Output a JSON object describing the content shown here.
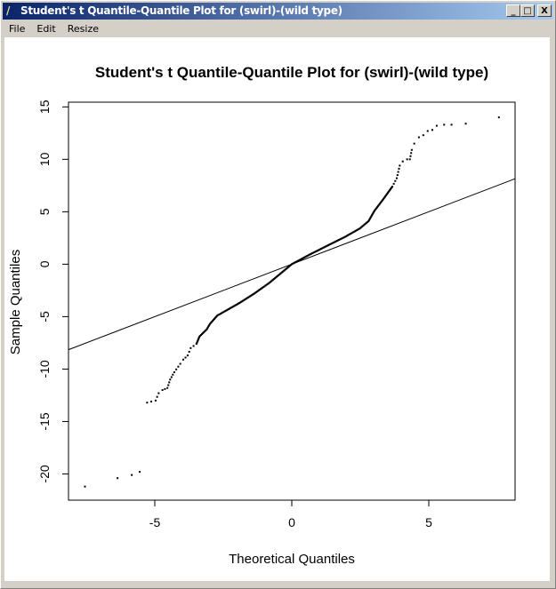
{
  "window": {
    "title": "Student's t Quantile-Quantile Plot for (swirl)-(wild type)",
    "icon": "feather-icon",
    "controls": {
      "minimize": "_",
      "maximize": "□",
      "close": "X"
    }
  },
  "menu": {
    "items": [
      "File",
      "Edit",
      "Resize"
    ]
  },
  "colors": {
    "titlebar_start": "#0a246a",
    "titlebar_end": "#a6caf0",
    "points": "#000000",
    "line": "#000000"
  },
  "chart_data": {
    "type": "scatter",
    "title": "Student's t Quantile-Quantile Plot for (swirl)-(wild type)",
    "xlabel": "Theoretical Quantiles",
    "ylabel": "Sample Quantiles",
    "xlim": [
      -8.15,
      8.15
    ],
    "ylim": [
      -22.5,
      15.45
    ],
    "xticks": [
      -5,
      0,
      5
    ],
    "yticks": [
      -20,
      -15,
      -10,
      -5,
      0,
      5,
      10,
      15
    ],
    "grid": false,
    "reference_line": {
      "slope": 1,
      "intercept": 0
    },
    "points": [
      [
        -7.55,
        -21.2
      ],
      [
        -6.36,
        -20.4
      ],
      [
        -5.84,
        -20.1
      ],
      [
        -5.55,
        -19.8
      ],
      [
        -5.28,
        -13.2
      ],
      [
        -5.13,
        -13.1
      ],
      [
        -4.97,
        -13.0
      ],
      [
        -4.86,
        -12.3
      ],
      [
        -4.72,
        -12.0
      ],
      [
        -4.54,
        -11.8
      ],
      [
        -4.44,
        -11.0
      ],
      [
        -4.29,
        -10.3
      ],
      [
        -4.07,
        -9.5
      ],
      [
        -3.96,
        -9.1
      ],
      [
        -3.8,
        -8.7
      ],
      [
        -3.69,
        -8.0
      ],
      [
        -3.48,
        -7.6
      ],
      [
        -3.37,
        -6.9
      ],
      [
        -3.1,
        -6.2
      ],
      [
        -2.99,
        -5.7
      ],
      [
        -2.72,
        -4.9
      ],
      [
        -2.45,
        -4.5
      ],
      [
        -1.91,
        -3.7
      ],
      [
        -1.37,
        -2.8
      ],
      [
        -0.83,
        -1.8
      ],
      [
        0,
        0
      ],
      [
        0.64,
        0.9
      ],
      [
        1.4,
        1.9
      ],
      [
        1.94,
        2.6
      ],
      [
        2.48,
        3.4
      ],
      [
        2.8,
        4.1
      ],
      [
        3.02,
        5.1
      ],
      [
        3.34,
        6.2
      ],
      [
        3.67,
        7.4
      ],
      [
        3.83,
        8.2
      ],
      [
        3.94,
        9.4
      ],
      [
        4.05,
        9.8
      ],
      [
        4.21,
        10.0
      ],
      [
        4.31,
        10.0
      ],
      [
        4.38,
        10.9
      ],
      [
        4.47,
        11.5
      ],
      [
        4.64,
        12.1
      ],
      [
        4.8,
        12.3
      ],
      [
        4.96,
        12.7
      ],
      [
        5.13,
        12.8
      ],
      [
        5.29,
        13.2
      ],
      [
        5.56,
        13.3
      ],
      [
        5.83,
        13.3
      ],
      [
        6.35,
        13.4
      ],
      [
        7.56,
        14.0
      ]
    ]
  }
}
